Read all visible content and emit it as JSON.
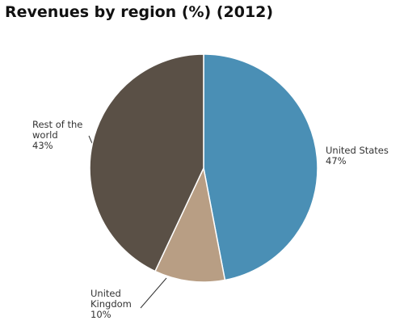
{
  "chart_data": {
    "type": "pie",
    "title": "Revenues by region (%) (2012)",
    "categories": [
      "United States",
      "United Kingdom",
      "Rest of the world"
    ],
    "values": [
      47,
      10,
      43
    ],
    "value_labels": [
      "47%",
      "10%",
      "43%"
    ],
    "colors": [
      "#4a8fb5",
      "#b89e84",
      "#5a5046"
    ]
  }
}
